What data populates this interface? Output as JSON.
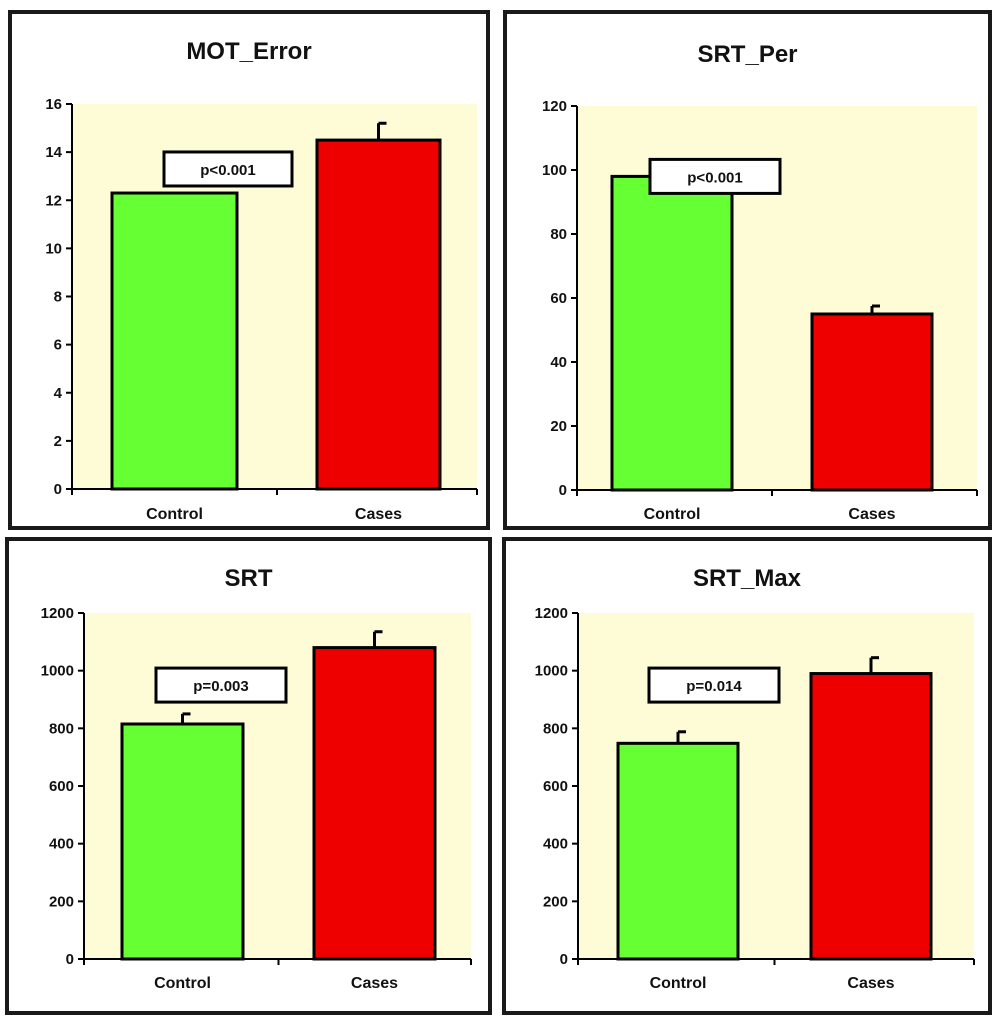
{
  "colors": {
    "plot_background": "#fdfcd6",
    "control_bar": "#66ff33",
    "cases_bar": "#ee0000",
    "bar_outline": "#000000"
  },
  "chart_data": [
    {
      "type": "bar",
      "title": "MOT_Error",
      "categories": [
        "Control",
        "Cases"
      ],
      "values": [
        12.3,
        14.5
      ],
      "error": [
        null,
        0.7
      ],
      "ylim": [
        0,
        16
      ],
      "yticks": [
        0,
        2,
        4,
        6,
        8,
        10,
        12,
        14,
        16
      ],
      "annotation": "p<0.001",
      "annotation_y": 13.3,
      "xlabel": "",
      "ylabel": "",
      "grid": false
    },
    {
      "type": "bar",
      "title": "SRT_Per",
      "categories": [
        "Control",
        "Cases"
      ],
      "values": [
        98,
        55
      ],
      "error": [
        null,
        2.5
      ],
      "ylim": [
        0,
        120
      ],
      "yticks": [
        0,
        20,
        40,
        60,
        80,
        100,
        120
      ],
      "annotation": "p<0.001",
      "annotation_y": 98,
      "xlabel": "",
      "ylabel": "",
      "grid": false
    },
    {
      "type": "bar",
      "title": "SRT",
      "categories": [
        "Control",
        "Cases"
      ],
      "values": [
        815,
        1080
      ],
      "error": [
        35,
        55
      ],
      "ylim": [
        0,
        1200
      ],
      "yticks": [
        0,
        200,
        400,
        600,
        800,
        1000,
        1200
      ],
      "annotation": "p=0.003",
      "annotation_y": 950,
      "xlabel": "",
      "ylabel": "",
      "grid": false
    },
    {
      "type": "bar",
      "title": "SRT_Max",
      "categories": [
        "Control",
        "Cases"
      ],
      "values": [
        748,
        990
      ],
      "error": [
        40,
        55
      ],
      "ylim": [
        0,
        1200
      ],
      "yticks": [
        0,
        200,
        400,
        600,
        800,
        1000,
        1200
      ],
      "annotation": "p=0.014",
      "annotation_y": 950,
      "xlabel": "",
      "ylabel": "",
      "grid": false
    }
  ]
}
